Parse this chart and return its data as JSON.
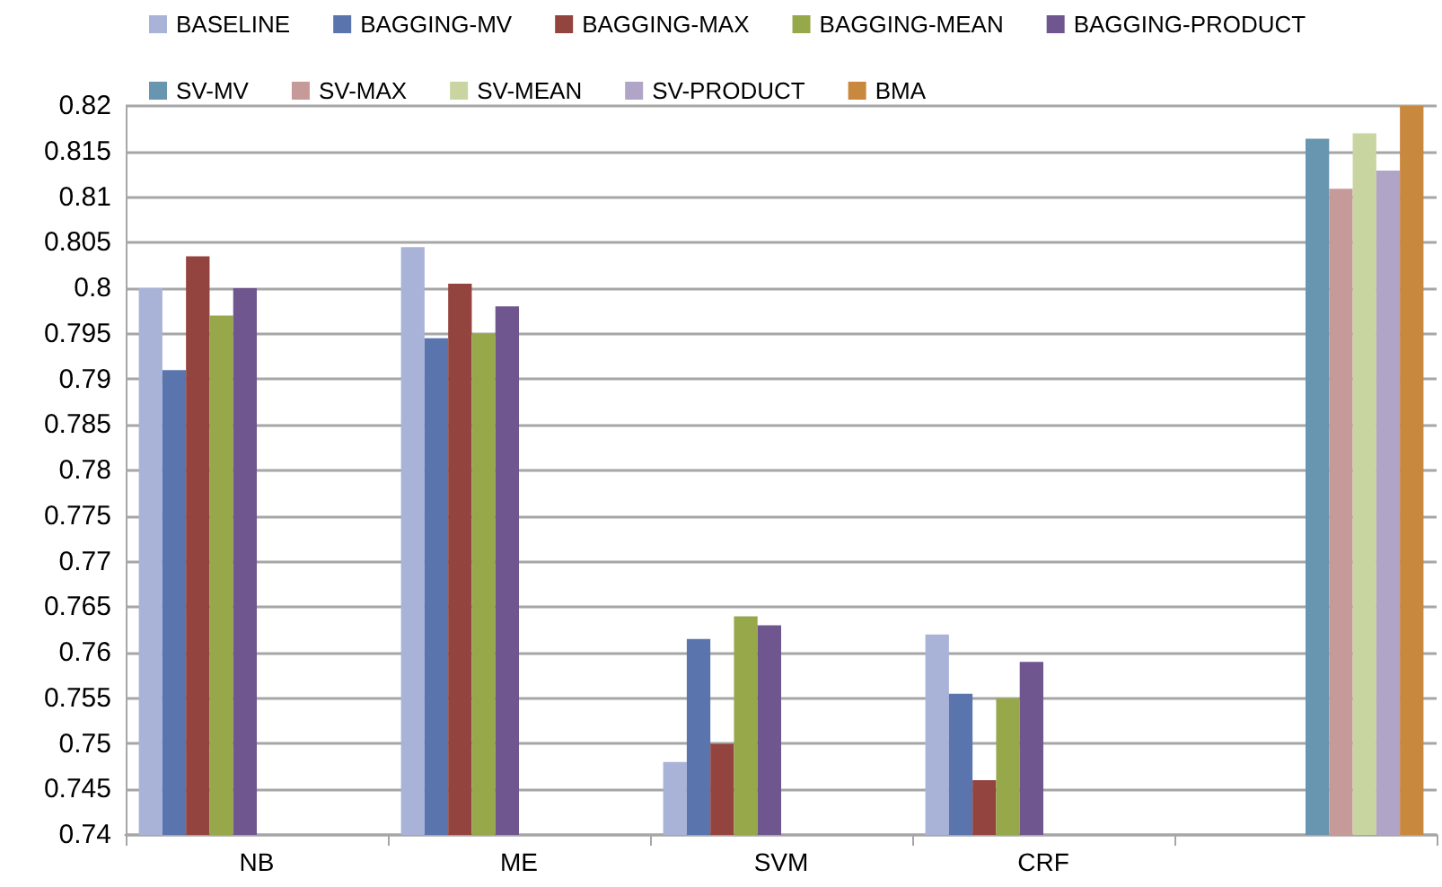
{
  "chart_data": {
    "type": "bar",
    "categories": [
      "NB",
      "ME",
      "SVM",
      "CRF",
      null
    ],
    "series": [
      {
        "name": "BASELINE",
        "color": "#a9b3d8",
        "values": [
          0.8,
          0.8045,
          0.748,
          0.762,
          null
        ]
      },
      {
        "name": "BAGGING-MV",
        "color": "#5a74ad",
        "values": [
          0.791,
          0.7945,
          0.7615,
          0.7555,
          null
        ]
      },
      {
        "name": "BAGGING-MAX",
        "color": "#94443f",
        "values": [
          0.8035,
          0.8005,
          0.75,
          0.746,
          null
        ]
      },
      {
        "name": "BAGGING-MEAN",
        "color": "#97a84a",
        "values": [
          0.797,
          0.795,
          0.764,
          0.755,
          null
        ]
      },
      {
        "name": "BAGGING-PRODUCT",
        "color": "#6f568f",
        "values": [
          0.8,
          0.798,
          0.763,
          0.759,
          null
        ]
      },
      {
        "name": "SV-MV",
        "color": "#6895b0",
        "values": [
          null,
          null,
          null,
          null,
          0.8164
        ]
      },
      {
        "name": "SV-MAX",
        "color": "#c69a98",
        "values": [
          null,
          null,
          null,
          null,
          0.8109
        ]
      },
      {
        "name": "SV-MEAN",
        "color": "#c9d5a0",
        "values": [
          null,
          null,
          null,
          null,
          0.817
        ]
      },
      {
        "name": "SV-PRODUCT",
        "color": "#b1a5c7",
        "values": [
          null,
          null,
          null,
          null,
          0.8129
        ]
      },
      {
        "name": "BMA",
        "color": "#c8883e",
        "values": [
          null,
          null,
          null,
          null,
          0.82
        ]
      }
    ],
    "ylim": [
      0.74,
      0.82
    ],
    "yticks": [
      0.74,
      0.745,
      0.75,
      0.755,
      0.76,
      0.765,
      0.77,
      0.775,
      0.78,
      0.785,
      0.79,
      0.795,
      0.8,
      0.805,
      0.81,
      0.815,
      0.82
    ],
    "grid": "y",
    "legend": "top"
  }
}
